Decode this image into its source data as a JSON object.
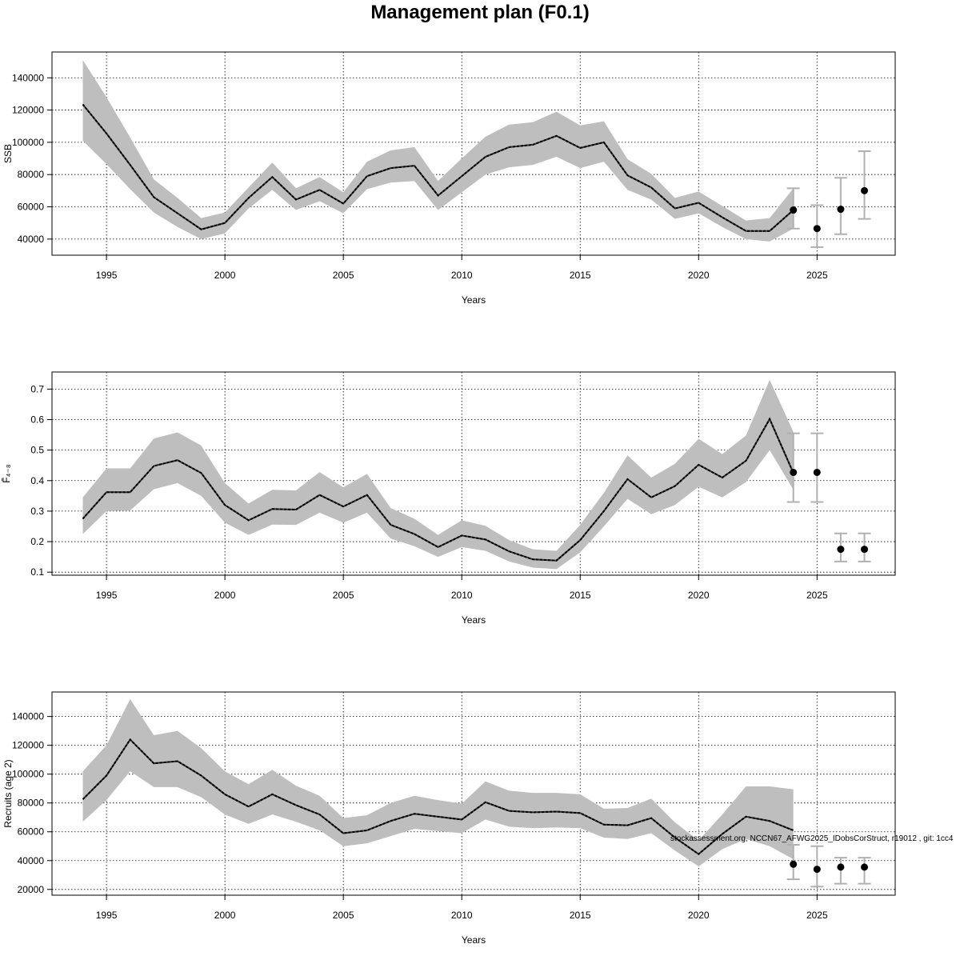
{
  "title": "Management plan (F0.1)",
  "footnote": "stockassessment.org, NCCN67_AFWG2025_IDobsCorStruct, r19012 , git: 1cc4",
  "colors": {
    "band": "#bebebe",
    "line": "#000000",
    "errorbar": "#b0b0b0",
    "grid": "#000000",
    "frame": "#000000"
  },
  "chart_data": [
    {
      "type": "line",
      "ylabel": "SSB",
      "xlabel": "Years",
      "xlim": [
        1992.7,
        2028.3
      ],
      "ylim": [
        30000,
        156000
      ],
      "x_ticks": [
        1995,
        2000,
        2005,
        2010,
        2015,
        2020,
        2025
      ],
      "y_ticks": [
        40000,
        60000,
        80000,
        100000,
        120000,
        140000
      ],
      "grid": true,
      "years": [
        1994,
        1995,
        1996,
        1997,
        1998,
        1999,
        2000,
        2001,
        2002,
        2003,
        2004,
        2005,
        2006,
        2007,
        2008,
        2009,
        2010,
        2011,
        2012,
        2013,
        2014,
        2015,
        2016,
        2017,
        2018,
        2019,
        2020,
        2021,
        2022,
        2023,
        2024
      ],
      "estimate": [
        123500,
        105500,
        86000,
        66000,
        56000,
        46000,
        50000,
        65500,
        78500,
        64500,
        70500,
        62000,
        79000,
        84000,
        85500,
        67000,
        79000,
        91000,
        97000,
        98500,
        104000,
        96500,
        100000,
        79500,
        72000,
        59000,
        62500,
        53500,
        45000,
        45000,
        58000
      ],
      "lower": [
        101000,
        86500,
        71000,
        56500,
        47500,
        40000,
        43500,
        59000,
        70500,
        58000,
        63500,
        56000,
        71000,
        75000,
        76000,
        58000,
        69000,
        80000,
        84500,
        86000,
        91000,
        84000,
        88000,
        70500,
        64500,
        52500,
        56000,
        47500,
        40000,
        38500,
        46500
      ],
      "upper": [
        151000,
        128000,
        103000,
        77000,
        65500,
        53000,
        56500,
        72000,
        87500,
        71500,
        78500,
        69000,
        88000,
        95000,
        97000,
        76000,
        90000,
        103500,
        111000,
        112500,
        119000,
        110500,
        113000,
        89500,
        80500,
        65500,
        69500,
        60500,
        51500,
        53000,
        71500
      ],
      "projection": {
        "years": [
          2024,
          2025,
          2026,
          2027
        ],
        "values": [
          58000,
          46500,
          58500,
          70000
        ],
        "lower": [
          46500,
          35000,
          43000,
          52500
        ],
        "upper": [
          71500,
          61000,
          78000,
          94500
        ]
      }
    },
    {
      "type": "line",
      "ylabel": "F̄₄₋₈",
      "xlabel": "Years",
      "xlim": [
        1992.7,
        2028.3
      ],
      "ylim": [
        0.09,
        0.756
      ],
      "x_ticks": [
        1995,
        2000,
        2005,
        2010,
        2015,
        2020,
        2025
      ],
      "y_ticks": [
        0.1,
        0.2,
        0.3,
        0.4,
        0.5,
        0.6,
        0.7
      ],
      "grid": true,
      "years": [
        1994,
        1995,
        1996,
        1997,
        1998,
        1999,
        2000,
        2001,
        2002,
        2003,
        2004,
        2005,
        2006,
        2007,
        2008,
        2009,
        2010,
        2011,
        2012,
        2013,
        2014,
        2015,
        2016,
        2017,
        2018,
        2019,
        2020,
        2021,
        2022,
        2023,
        2024
      ],
      "estimate": [
        0.275,
        0.362,
        0.362,
        0.448,
        0.467,
        0.425,
        0.32,
        0.27,
        0.307,
        0.305,
        0.353,
        0.315,
        0.353,
        0.255,
        0.225,
        0.182,
        0.22,
        0.207,
        0.168,
        0.142,
        0.138,
        0.205,
        0.3,
        0.405,
        0.345,
        0.382,
        0.452,
        0.41,
        0.465,
        0.602,
        0.425
      ],
      "lower": [
        0.225,
        0.3,
        0.302,
        0.372,
        0.392,
        0.35,
        0.262,
        0.222,
        0.256,
        0.255,
        0.295,
        0.262,
        0.295,
        0.21,
        0.185,
        0.15,
        0.182,
        0.17,
        0.135,
        0.115,
        0.11,
        0.165,
        0.25,
        0.34,
        0.29,
        0.32,
        0.38,
        0.345,
        0.395,
        0.5,
        0.37
      ],
      "upper": [
        0.345,
        0.44,
        0.44,
        0.538,
        0.558,
        0.515,
        0.392,
        0.325,
        0.37,
        0.368,
        0.428,
        0.378,
        0.422,
        0.31,
        0.275,
        0.222,
        0.27,
        0.252,
        0.205,
        0.175,
        0.17,
        0.255,
        0.36,
        0.483,
        0.41,
        0.455,
        0.537,
        0.487,
        0.548,
        0.73,
        0.56
      ],
      "projection": {
        "years": [
          2024,
          2025,
          2026,
          2027
        ],
        "values": [
          0.427,
          0.427,
          0.175,
          0.175
        ],
        "lower": [
          0.33,
          0.33,
          0.135,
          0.135
        ],
        "upper": [
          0.555,
          0.555,
          0.227,
          0.227
        ]
      }
    },
    {
      "type": "line",
      "ylabel": "Recruits (age 2)",
      "xlabel": "Years",
      "xlim": [
        1992.7,
        2028.3
      ],
      "ylim": [
        16000,
        157000
      ],
      "x_ticks": [
        1995,
        2000,
        2005,
        2010,
        2015,
        2020,
        2025
      ],
      "y_ticks": [
        20000,
        40000,
        60000,
        80000,
        100000,
        120000,
        140000
      ],
      "grid": true,
      "years": [
        1994,
        1995,
        1996,
        1997,
        1998,
        1999,
        2000,
        2001,
        2002,
        2003,
        2004,
        2005,
        2006,
        2007,
        2008,
        2009,
        2010,
        2011,
        2012,
        2013,
        2014,
        2015,
        2016,
        2017,
        2018,
        2019,
        2020,
        2021,
        2022,
        2023,
        2024
      ],
      "estimate": [
        82500,
        99000,
        124000,
        107500,
        109000,
        99000,
        86000,
        77500,
        86000,
        78500,
        72000,
        59000,
        61000,
        67500,
        72500,
        70500,
        68500,
        80500,
        74500,
        73500,
        74000,
        73000,
        65000,
        64500,
        69500,
        56000,
        44500,
        58500,
        70500,
        67500,
        61000
      ],
      "lower": [
        67000,
        82000,
        102000,
        91000,
        91000,
        84000,
        72000,
        65500,
        72000,
        67000,
        61000,
        50000,
        52000,
        57000,
        62000,
        60500,
        59000,
        68500,
        63500,
        62500,
        63000,
        62500,
        56000,
        55000,
        59000,
        47000,
        36000,
        48000,
        55000,
        50000,
        41000
      ],
      "upper": [
        102000,
        120000,
        152000,
        127000,
        130000,
        118000,
        102000,
        93000,
        103000,
        92000,
        85000,
        69500,
        71500,
        80000,
        85000,
        82000,
        79500,
        95000,
        88500,
        87000,
        87000,
        86000,
        76000,
        76500,
        83000,
        66500,
        54000,
        72000,
        91500,
        91500,
        89500
      ],
      "projection": {
        "years": [
          2024,
          2025,
          2026,
          2027
        ],
        "values": [
          37500,
          34000,
          35500,
          35500
        ],
        "lower": [
          27000,
          22000,
          24000,
          24000
        ],
        "upper": [
          51000,
          50000,
          42000,
          42000
        ]
      }
    }
  ]
}
